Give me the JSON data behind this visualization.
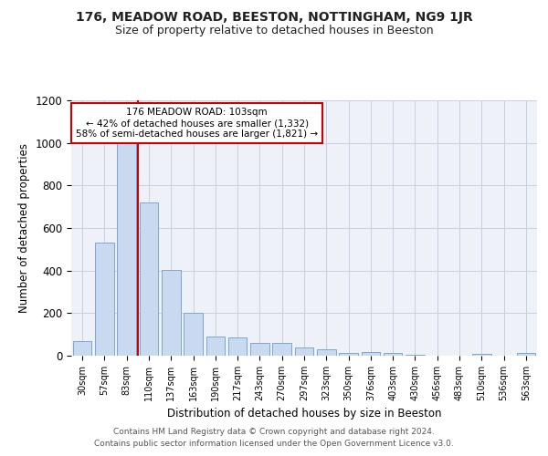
{
  "title": "176, MEADOW ROAD, BEESTON, NOTTINGHAM, NG9 1JR",
  "subtitle": "Size of property relative to detached houses in Beeston",
  "xlabel": "Distribution of detached houses by size in Beeston",
  "ylabel": "Number of detached properties",
  "footnote1": "Contains HM Land Registry data © Crown copyright and database right 2024.",
  "footnote2": "Contains public sector information licensed under the Open Government Licence v3.0.",
  "annotation_line1": "176 MEADOW ROAD: 103sqm",
  "annotation_line2": "← 42% of detached houses are smaller (1,332)",
  "annotation_line3": "58% of semi-detached houses are larger (1,821) →",
  "bar_labels": [
    "30sqm",
    "57sqm",
    "83sqm",
    "110sqm",
    "137sqm",
    "163sqm",
    "190sqm",
    "217sqm",
    "243sqm",
    "270sqm",
    "297sqm",
    "323sqm",
    "350sqm",
    "376sqm",
    "403sqm",
    "430sqm",
    "456sqm",
    "483sqm",
    "510sqm",
    "536sqm",
    "563sqm"
  ],
  "bar_values": [
    70,
    530,
    1005,
    720,
    405,
    200,
    90,
    85,
    60,
    58,
    40,
    30,
    15,
    18,
    15,
    5,
    2,
    1,
    10,
    2,
    12
  ],
  "bar_color": "#c9d9f0",
  "bar_edge_color": "#7aa8d4",
  "grid_color": "#c8d0dc",
  "background_color": "#eef2f8",
  "vline_color": "#cc0000",
  "vline_pos": 2.5,
  "ylim": [
    0,
    1200
  ],
  "yticks": [
    0,
    200,
    400,
    600,
    800,
    1000,
    1200
  ],
  "title_fontsize": 10,
  "subtitle_fontsize": 9
}
